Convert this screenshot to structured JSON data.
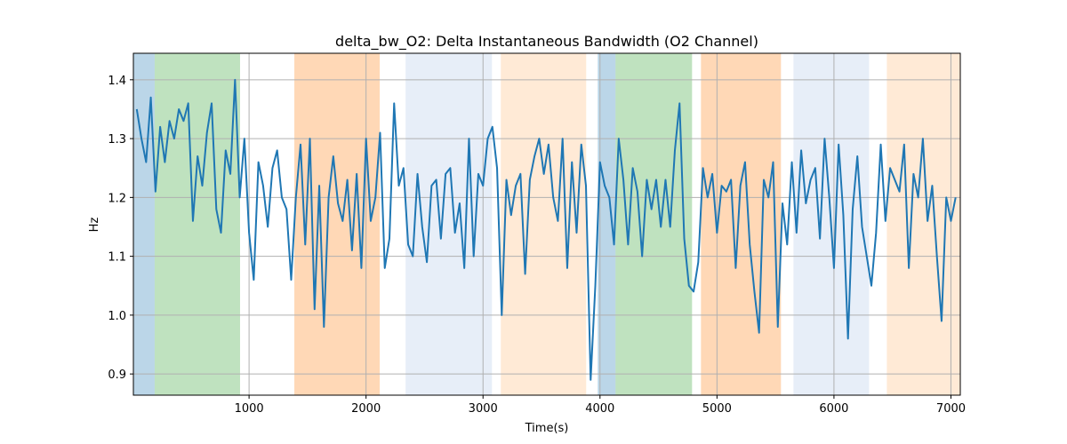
{
  "chart_data": {
    "type": "line",
    "title": "delta_bw_O2: Delta Instantaneous Bandwidth (O2 Channel)",
    "xlabel": "Time(s)",
    "ylabel": "Hz",
    "xlim": [
      11,
      7080
    ],
    "ylim": [
      0.864,
      1.445
    ],
    "grid": true,
    "line_color": "#1f77b4",
    "xticks": [
      1000,
      2000,
      3000,
      4000,
      5000,
      6000,
      7000
    ],
    "xtick_labels": [
      "1000",
      "2000",
      "3000",
      "4000",
      "5000",
      "6000",
      "7000"
    ],
    "yticks": [
      0.9,
      1.0,
      1.1,
      1.2,
      1.3,
      1.4
    ],
    "ytick_labels": [
      "0.9",
      "1.0",
      "1.1",
      "1.2",
      "1.3",
      "1.4"
    ],
    "spans": [
      {
        "start": 11,
        "end": 193,
        "color": "#1f77b4",
        "alpha": 0.3
      },
      {
        "start": 193,
        "end": 923,
        "color": "#2ca02c",
        "alpha": 0.3
      },
      {
        "start": 1387,
        "end": 2117,
        "color": "#ff7f0e",
        "alpha": 0.3
      },
      {
        "start": 2338,
        "end": 3076,
        "color": "#aec7e8",
        "alpha": 0.3
      },
      {
        "start": 3152,
        "end": 3882,
        "color": "#ffbb78",
        "alpha": 0.3
      },
      {
        "start": 3981,
        "end": 4133,
        "color": "#1f77b4",
        "alpha": 0.3
      },
      {
        "start": 4133,
        "end": 4787,
        "color": "#2ca02c",
        "alpha": 0.3
      },
      {
        "start": 4863,
        "end": 5547,
        "color": "#ff7f0e",
        "alpha": 0.3
      },
      {
        "start": 5654,
        "end": 6300,
        "color": "#aec7e8",
        "alpha": 0.3
      },
      {
        "start": 6452,
        "end": 7080,
        "color": "#ffbb78",
        "alpha": 0.3
      }
    ],
    "x_start": 40,
    "x_step": 40,
    "values": [
      1.35,
      1.3,
      1.26,
      1.37,
      1.21,
      1.32,
      1.26,
      1.33,
      1.3,
      1.35,
      1.33,
      1.36,
      1.16,
      1.27,
      1.22,
      1.31,
      1.36,
      1.18,
      1.14,
      1.28,
      1.24,
      1.4,
      1.2,
      1.3,
      1.14,
      1.06,
      1.26,
      1.22,
      1.15,
      1.25,
      1.28,
      1.2,
      1.18,
      1.06,
      1.2,
      1.29,
      1.12,
      1.3,
      1.01,
      1.22,
      0.98,
      1.2,
      1.27,
      1.19,
      1.16,
      1.23,
      1.11,
      1.24,
      1.08,
      1.3,
      1.16,
      1.2,
      1.31,
      1.08,
      1.13,
      1.36,
      1.22,
      1.25,
      1.12,
      1.1,
      1.24,
      1.15,
      1.09,
      1.22,
      1.23,
      1.13,
      1.24,
      1.25,
      1.14,
      1.19,
      1.08,
      1.3,
      1.1,
      1.24,
      1.22,
      1.3,
      1.32,
      1.25,
      1.0,
      1.23,
      1.17,
      1.22,
      1.24,
      1.07,
      1.23,
      1.27,
      1.3,
      1.24,
      1.29,
      1.2,
      1.16,
      1.3,
      1.08,
      1.26,
      1.14,
      1.29,
      1.22,
      0.89,
      1.05,
      1.26,
      1.22,
      1.2,
      1.12,
      1.3,
      1.23,
      1.12,
      1.25,
      1.21,
      1.1,
      1.23,
      1.18,
      1.23,
      1.15,
      1.23,
      1.15,
      1.28,
      1.36,
      1.13,
      1.05,
      1.04,
      1.09,
      1.25,
      1.2,
      1.24,
      1.14,
      1.22,
      1.21,
      1.23,
      1.08,
      1.22,
      1.26,
      1.12,
      1.04,
      0.97,
      1.23,
      1.2,
      1.26,
      0.98,
      1.19,
      1.12,
      1.26,
      1.14,
      1.28,
      1.19,
      1.23,
      1.25,
      1.13,
      1.3,
      1.2,
      1.08,
      1.29,
      1.17,
      0.96,
      1.18,
      1.27,
      1.15,
      1.1,
      1.05,
      1.14,
      1.29,
      1.16,
      1.25,
      1.23,
      1.21,
      1.29,
      1.08,
      1.24,
      1.2,
      1.3,
      1.16,
      1.22,
      1.1,
      0.99,
      1.2,
      1.16,
      1.2
    ]
  }
}
